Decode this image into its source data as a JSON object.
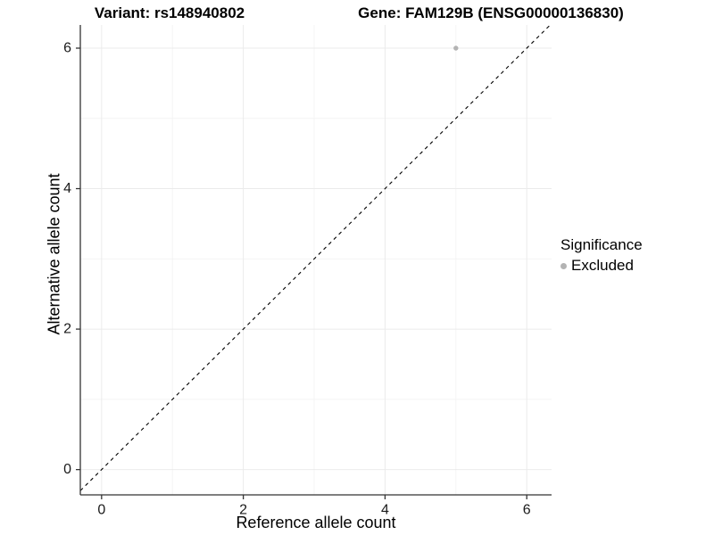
{
  "figure": {
    "title_variant": "Variant: rs148940802",
    "title_gene": "Gene: FAM129B (ENSG00000136830)"
  },
  "legend": {
    "title": "Significance",
    "items": [
      {
        "label": "Excluded",
        "color": "#b3b3b3"
      }
    ]
  },
  "chart_data": {
    "type": "scatter",
    "titles": [
      "Variant: rs148940802",
      "Gene: FAM129B (ENSG00000136830)"
    ],
    "xlabel": "Reference allele count",
    "ylabel": "Alternative allele count",
    "xlim": [
      -0.3,
      6.35
    ],
    "ylim": [
      -0.36,
      6.33
    ],
    "xticks": [
      0,
      2,
      4,
      6
    ],
    "yticks": [
      0,
      2,
      4,
      6
    ],
    "xticks_minor": [
      1,
      3,
      5
    ],
    "yticks_minor": [
      1,
      3,
      5
    ],
    "grid": "major+minor",
    "legend_position": "right",
    "series": [
      {
        "name": "Excluded",
        "color": "#b3b3b3",
        "points": [
          {
            "x": 5,
            "y": 6
          }
        ]
      }
    ],
    "reference_line": {
      "type": "identity y=x",
      "style": "dashed",
      "color": "#000000"
    }
  },
  "colors": {
    "background": "#ffffff",
    "grid_major": "#ebebeb",
    "grid_minor": "#f4f4f4",
    "axis": "#333333",
    "tick_label": "#1a1a1a",
    "point": "#b3b3b3"
  }
}
